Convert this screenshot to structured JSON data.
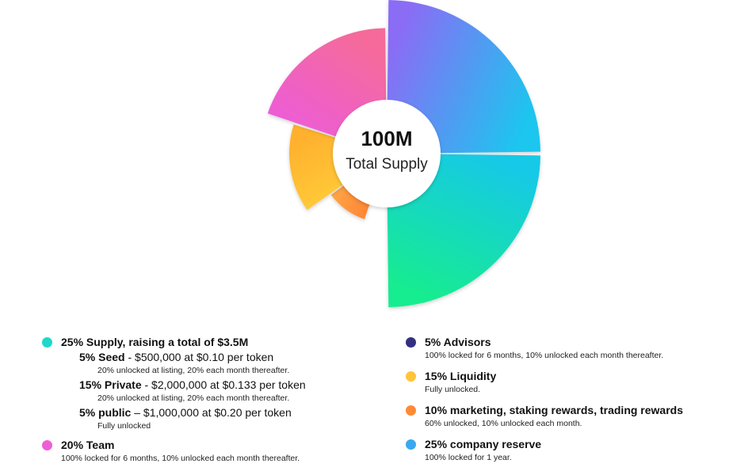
{
  "chart_data": {
    "type": "pie",
    "center": {
      "value": "100M",
      "label": "Total Supply"
    },
    "slices": [
      {
        "key": "advisors",
        "value": 5,
        "color": "#2e2a7e",
        "color2": "#4a3fa6"
      },
      {
        "key": "marketing",
        "value": 10,
        "color": "#ff7a2e",
        "color2": "#ffa848"
      },
      {
        "key": "liquidity",
        "value": 15,
        "color": "#ffd03a",
        "color2": "#ffb02e"
      },
      {
        "key": "team",
        "value": 20,
        "color": "#ec5bdc",
        "color2": "#f56b9a"
      },
      {
        "key": "reserve",
        "value": 25,
        "color": "#8a6cf5",
        "color2": "#1cc6ef"
      },
      {
        "key": "sale",
        "value": 25,
        "color": "#15c9e6",
        "color2": "#12ec90"
      }
    ]
  },
  "legend": {
    "sale": {
      "color": "#1fd8c9",
      "label": "25% Supply, raising a total of $3.5M",
      "items": [
        {
          "name": "5% Seed",
          "detail": " - $500,000 at $0.10 per token",
          "note": "20% unlocked at listing, 20% each month thereafter."
        },
        {
          "name": "15% Private",
          "detail": " - $2,000,000 at $0.133 per token",
          "note": "20% unlocked at listing, 20% each month thereafter."
        },
        {
          "name": "5% public",
          "detail": " – $1,000,000 at $0.20 per token",
          "note": "Fully unlocked"
        }
      ]
    },
    "team": {
      "color": "#ee5fd6",
      "label": "20% Team",
      "note": "100% locked for 6 months, 10% unlocked each month thereafter."
    },
    "advisors": {
      "color": "#33307f",
      "label": "5% Advisors",
      "note": "100% locked for 6 months, 10% unlocked each month thereafter."
    },
    "liquidity": {
      "color": "#ffc43a",
      "label": "15% Liquidity",
      "note": "Fully unlocked."
    },
    "marketing": {
      "color": "#ff8a34",
      "label": "10% marketing, staking rewards, trading rewards",
      "note": "60% unlocked, 10% unlocked each month."
    },
    "reserve": {
      "color": "#3aa8f0",
      "label": "25% company reserve",
      "note": "100% locked for 1 year."
    }
  }
}
